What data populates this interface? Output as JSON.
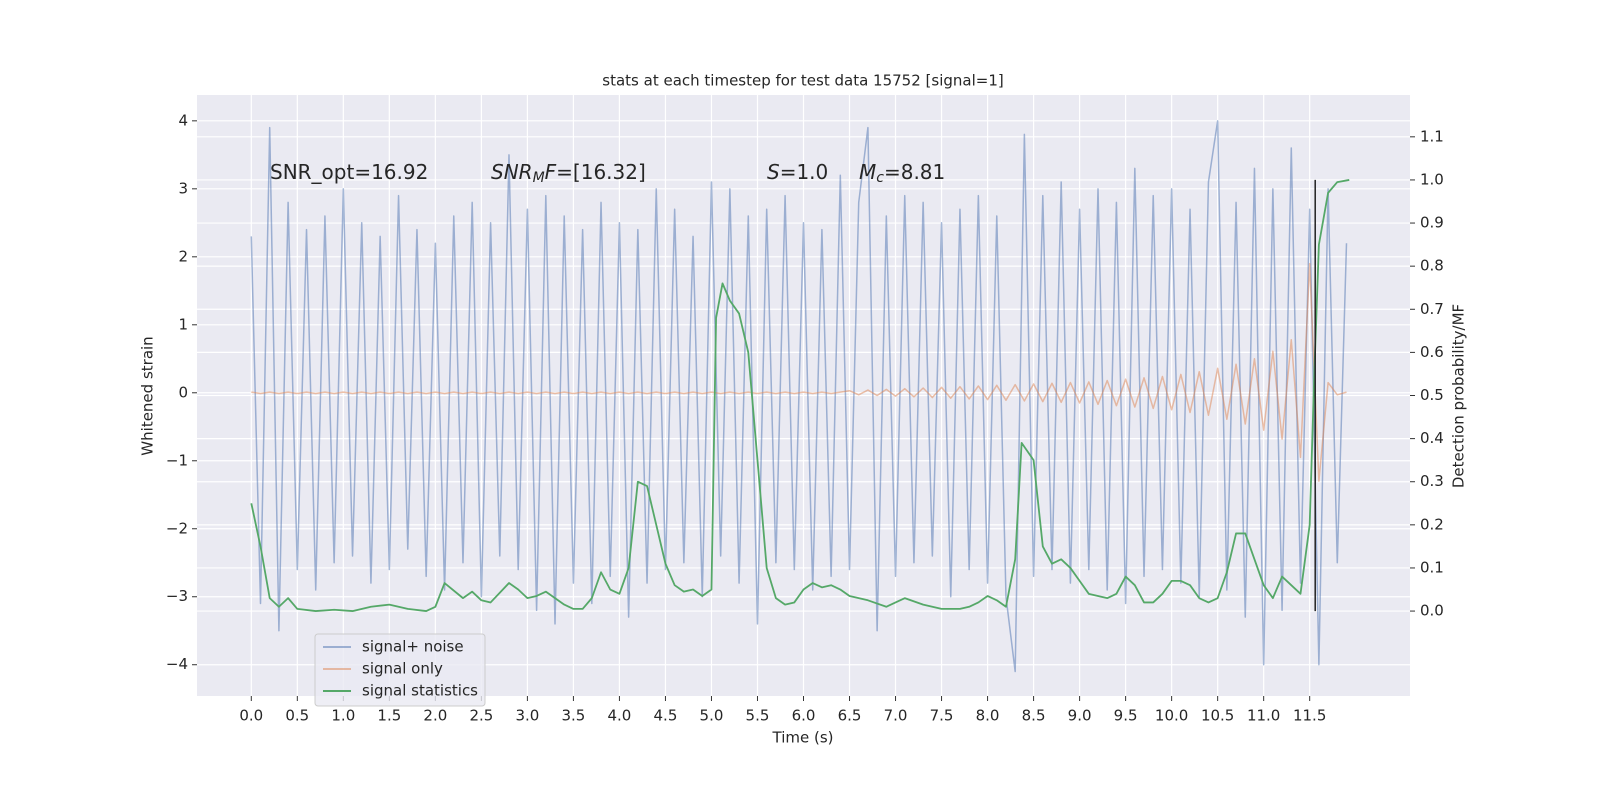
{
  "chart_data": {
    "type": "line",
    "title": "stats at each timestep for test data 15752 [signal=1]",
    "xlabel": "Time (s)",
    "ylabel": "Whitened strain",
    "y2label": "Detection probability/MF",
    "xlim": [
      -0.59,
      12.59
    ],
    "ylim": [
      -4.46,
      4.38
    ],
    "y2lim": [
      -0.197,
      1.197
    ],
    "xticks": [
      {
        "value": 0,
        "label": "0.0"
      },
      0.5,
      {
        "value": 1,
        "label": "1.0"
      },
      1.5,
      {
        "value": 2,
        "label": "2.0"
      },
      2.5,
      {
        "value": 3,
        "label": "3.0"
      },
      3.5,
      {
        "value": 4,
        "label": "4.0"
      },
      4.5,
      {
        "value": 5,
        "label": "5.0"
      },
      5.5,
      {
        "value": 6,
        "label": "6.0"
      },
      6.5,
      {
        "value": 7,
        "label": "7.0"
      },
      7.5,
      {
        "value": 8,
        "label": "8.0"
      },
      8.5,
      {
        "value": 9,
        "label": "9.0"
      },
      9.5,
      {
        "value": 10,
        "label": "10.0"
      },
      10.5,
      {
        "value": 11,
        "label": "11.0"
      },
      11.5
    ],
    "yticks": [
      {
        "value": -4,
        "label": "−4"
      },
      {
        "value": -3,
        "label": "−3"
      },
      {
        "value": -2,
        "label": "−2"
      },
      {
        "value": -1,
        "label": "−1"
      },
      0,
      1,
      2,
      3,
      4
    ],
    "y2ticks": [
      {
        "value": 0,
        "label": "0.0"
      },
      0.1,
      0.2,
      0.3,
      0.4,
      0.5,
      0.6,
      0.7,
      0.8,
      0.9,
      {
        "value": 1,
        "label": "1.0"
      },
      1.1
    ],
    "grid": true,
    "background": "#eaeaf2",
    "legend": "lower left",
    "annotations": [
      [
        {
          "text": "SNR_opt=16.92",
          "italic": false,
          "sub": false
        }
      ],
      [
        {
          "text": "SNR",
          "italic": true,
          "sub": false
        },
        {
          "text": "M",
          "italic": true,
          "sub": true
        },
        {
          "text": "F",
          "italic": true,
          "sub": false
        },
        {
          "text": "=[16.32]",
          "italic": false,
          "sub": false
        }
      ],
      [
        {
          "text": "S",
          "italic": true,
          "sub": false
        },
        {
          "text": "=1.0",
          "italic": false,
          "sub": false
        }
      ],
      [
        {
          "text": "M",
          "italic": true,
          "sub": false
        },
        {
          "text": "c",
          "italic": true,
          "sub": true
        },
        {
          "text": "=8.81",
          "italic": false,
          "sub": false
        }
      ]
    ],
    "vline": {
      "x": 11.56,
      "ymin": 0,
      "ymax": 1,
      "axis": "y2",
      "color": "#222222"
    },
    "series": [
      {
        "name": "signal+ noise",
        "color": "#4c72b0",
        "opacity": 0.5,
        "axis": "y",
        "x": [
          0,
          0.1,
          0.2,
          0.3,
          0.4,
          0.5,
          0.6,
          0.7,
          0.8,
          0.9,
          1,
          1.1,
          1.2,
          1.3,
          1.4,
          1.5,
          1.6,
          1.7,
          1.8,
          1.9,
          2,
          2.1,
          2.2,
          2.3,
          2.4,
          2.5,
          2.6,
          2.7,
          2.8,
          2.9,
          3,
          3.1,
          3.2,
          3.3,
          3.4,
          3.5,
          3.6,
          3.7,
          3.8,
          3.9,
          4,
          4.1,
          4.2,
          4.3,
          4.4,
          4.5,
          4.6,
          4.7,
          4.8,
          4.9,
          5,
          5.1,
          5.2,
          5.3,
          5.4,
          5.5,
          5.6,
          5.7,
          5.8,
          5.9,
          6,
          6.1,
          6.2,
          6.3,
          6.4,
          6.5,
          6.6,
          6.7,
          6.8,
          6.9,
          7,
          7.1,
          7.2,
          7.3,
          7.4,
          7.5,
          7.6,
          7.7,
          7.8,
          7.9,
          8,
          8.1,
          8.2,
          8.3,
          8.4,
          8.5,
          8.6,
          8.7,
          8.8,
          8.9,
          9,
          9.1,
          9.2,
          9.3,
          9.4,
          9.5,
          9.6,
          9.7,
          9.8,
          9.9,
          10,
          10.1,
          10.2,
          10.3,
          10.4,
          10.5,
          10.6,
          10.7,
          10.8,
          10.9,
          11,
          11.1,
          11.2,
          11.3,
          11.4,
          11.5,
          11.6,
          11.7,
          11.8,
          11.9
        ],
        "values": [
          2.3,
          -3.1,
          3.9,
          -3.5,
          2.8,
          -2.6,
          2.4,
          -2.9,
          2.6,
          -2.5,
          3.0,
          -2.4,
          2.5,
          -2.8,
          2.3,
          -2.6,
          2.9,
          -2.3,
          2.4,
          -2.7,
          2.2,
          -2.9,
          2.6,
          -2.5,
          2.8,
          -3.0,
          2.5,
          -2.4,
          3.5,
          -2.6,
          2.7,
          -3.2,
          2.9,
          -3.4,
          2.6,
          -2.8,
          2.4,
          -3.1,
          2.8,
          -2.7,
          2.5,
          -3.3,
          2.4,
          -2.8,
          3.0,
          -2.6,
          2.7,
          -2.5,
          2.3,
          -3.0,
          3.1,
          -2.4,
          3.0,
          -2.8,
          2.6,
          -3.4,
          2.7,
          -2.5,
          2.9,
          -2.6,
          2.5,
          -2.9,
          2.4,
          -2.7,
          3.2,
          -2.6,
          2.8,
          3.9,
          -3.5,
          2.6,
          -2.7,
          2.9,
          -2.5,
          2.8,
          -2.4,
          2.5,
          -3.0,
          2.7,
          -2.6,
          2.9,
          -2.8,
          2.6,
          -3.0,
          -4.1,
          3.8,
          -2.7,
          2.9,
          -2.6,
          3.1,
          -2.8,
          2.7,
          -2.6,
          3.0,
          -2.9,
          2.8,
          -3.1,
          3.3,
          -2.7,
          2.9,
          -2.6,
          3.0,
          -2.8,
          2.7,
          -3.0,
          3.1,
          4.0,
          -2.9,
          2.8,
          -3.3,
          3.3,
          -4.0,
          3.0,
          -3.2,
          3.6,
          -2.8,
          2.7,
          -4.0,
          3.0,
          -2.5,
          2.2
        ]
      },
      {
        "name": "signal only",
        "color": "#dd8452",
        "opacity": 0.5,
        "axis": "y",
        "x": [
          0,
          0.1,
          0.2,
          0.3,
          0.4,
          0.5,
          0.6,
          0.7,
          0.8,
          0.9,
          1,
          1.1,
          1.2,
          1.3,
          1.4,
          1.5,
          1.6,
          1.7,
          1.8,
          1.9,
          2,
          2.1,
          2.2,
          2.3,
          2.4,
          2.5,
          2.6,
          2.7,
          2.8,
          2.9,
          3,
          3.1,
          3.2,
          3.3,
          3.4,
          3.5,
          3.6,
          3.7,
          3.8,
          3.9,
          4,
          4.1,
          4.2,
          4.3,
          4.4,
          4.5,
          4.6,
          4.7,
          4.8,
          4.9,
          5,
          5.1,
          5.2,
          5.3,
          5.4,
          5.5,
          5.6,
          5.7,
          5.8,
          5.9,
          6,
          6.1,
          6.2,
          6.3,
          6.4,
          6.5,
          6.6,
          6.7,
          6.8,
          6.9,
          7,
          7.1,
          7.2,
          7.3,
          7.4,
          7.5,
          7.6,
          7.7,
          7.8,
          7.9,
          8,
          8.1,
          8.2,
          8.3,
          8.4,
          8.5,
          8.6,
          8.7,
          8.8,
          8.9,
          9,
          9.1,
          9.2,
          9.3,
          9.4,
          9.5,
          9.6,
          9.7,
          9.8,
          9.9,
          10,
          10.1,
          10.2,
          10.3,
          10.4,
          10.5,
          10.6,
          10.7,
          10.8,
          10.9,
          11,
          11.1,
          11.2,
          11.3,
          11.4,
          11.5,
          11.6,
          11.7,
          11.8,
          11.9
        ],
        "values": [
          0.01,
          -0.01,
          0.01,
          -0.01,
          0.01,
          -0.01,
          0.01,
          -0.01,
          0.01,
          -0.01,
          0.01,
          -0.01,
          0.01,
          -0.01,
          0.01,
          -0.01,
          0.01,
          -0.01,
          0.01,
          -0.01,
          0.01,
          -0.01,
          0.01,
          -0.01,
          0.01,
          -0.01,
          0.01,
          -0.01,
          0.01,
          -0.01,
          0.01,
          -0.01,
          0.01,
          -0.01,
          0.01,
          -0.01,
          0.01,
          -0.01,
          0.01,
          -0.01,
          0.01,
          -0.01,
          0.01,
          -0.01,
          0.01,
          -0.01,
          0.01,
          -0.01,
          0.01,
          -0.01,
          0.01,
          -0.01,
          0.01,
          -0.01,
          0.01,
          -0.01,
          0.01,
          -0.01,
          0.01,
          -0.01,
          0.01,
          -0.01,
          0.01,
          -0.01,
          0.01,
          0.03,
          -0.03,
          0.04,
          -0.04,
          0.05,
          -0.05,
          0.06,
          -0.06,
          0.07,
          -0.07,
          0.08,
          -0.08,
          0.09,
          -0.09,
          0.1,
          -0.1,
          0.11,
          -0.11,
          0.12,
          -0.12,
          0.13,
          -0.13,
          0.14,
          -0.14,
          0.15,
          -0.15,
          0.16,
          -0.17,
          0.18,
          -0.19,
          0.2,
          -0.21,
          0.22,
          -0.23,
          0.24,
          -0.25,
          0.27,
          -0.29,
          0.31,
          -0.33,
          0.36,
          -0.39,
          0.42,
          -0.46,
          0.5,
          -0.55,
          0.61,
          -0.68,
          0.78,
          -0.95,
          1.9,
          -1.3,
          0.15,
          -0.03,
          0.01
        ]
      },
      {
        "name": "signal statistics",
        "color": "#55a868",
        "opacity": 1,
        "axis": "y2",
        "x": [
          0,
          0.1,
          0.2,
          0.3,
          0.4,
          0.5,
          0.7,
          0.9,
          1.1,
          1.3,
          1.5,
          1.7,
          1.9,
          2.0,
          2.1,
          2.3,
          2.4,
          2.5,
          2.6,
          2.8,
          2.9,
          3.0,
          3.1,
          3.2,
          3.3,
          3.4,
          3.5,
          3.6,
          3.7,
          3.8,
          3.9,
          4.0,
          4.1,
          4.2,
          4.3,
          4.4,
          4.5,
          4.6,
          4.7,
          4.8,
          4.9,
          5.0,
          5.05,
          5.12,
          5.2,
          5.3,
          5.4,
          5.5,
          5.6,
          5.7,
          5.8,
          5.9,
          6.0,
          6.1,
          6.2,
          6.3,
          6.4,
          6.5,
          6.7,
          6.9,
          7.0,
          7.1,
          7.3,
          7.5,
          7.7,
          7.8,
          7.9,
          8.0,
          8.1,
          8.2,
          8.3,
          8.37,
          8.5,
          8.6,
          8.7,
          8.8,
          8.9,
          9.0,
          9.1,
          9.3,
          9.4,
          9.5,
          9.6,
          9.7,
          9.8,
          9.9,
          10.0,
          10.1,
          10.2,
          10.3,
          10.4,
          10.5,
          10.6,
          10.7,
          10.8,
          10.9,
          11.0,
          11.1,
          11.2,
          11.3,
          11.4,
          11.5,
          11.55,
          11.6,
          11.7,
          11.8,
          11.93
        ],
        "values": [
          0.25,
          0.15,
          0.03,
          0.01,
          0.03,
          0.005,
          0.0,
          0.003,
          0.0,
          0.01,
          0.015,
          0.005,
          0.0,
          0.01,
          0.065,
          0.03,
          0.045,
          0.025,
          0.02,
          0.065,
          0.05,
          0.03,
          0.035,
          0.045,
          0.03,
          0.015,
          0.005,
          0.005,
          0.03,
          0.09,
          0.05,
          0.04,
          0.1,
          0.3,
          0.29,
          0.2,
          0.11,
          0.06,
          0.045,
          0.05,
          0.035,
          0.05,
          0.68,
          0.76,
          0.72,
          0.69,
          0.6,
          0.35,
          0.1,
          0.03,
          0.015,
          0.02,
          0.05,
          0.065,
          0.055,
          0.06,
          0.05,
          0.035,
          0.025,
          0.01,
          0.02,
          0.03,
          0.015,
          0.005,
          0.005,
          0.01,
          0.02,
          0.035,
          0.025,
          0.01,
          0.12,
          0.39,
          0.35,
          0.15,
          0.11,
          0.12,
          0.1,
          0.07,
          0.04,
          0.03,
          0.04,
          0.08,
          0.06,
          0.02,
          0.02,
          0.04,
          0.07,
          0.07,
          0.06,
          0.03,
          0.02,
          0.03,
          0.09,
          0.18,
          0.18,
          0.12,
          0.06,
          0.03,
          0.08,
          0.06,
          0.04,
          0.2,
          0.55,
          0.85,
          0.97,
          0.995,
          1.0
        ]
      }
    ]
  }
}
